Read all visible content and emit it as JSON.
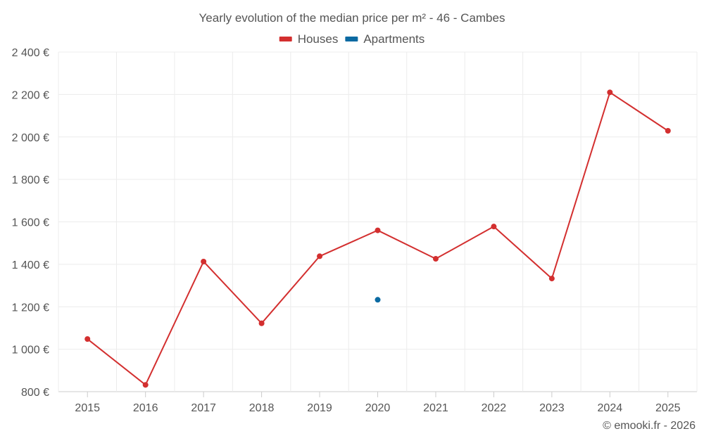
{
  "chart_data": {
    "type": "line",
    "title": "Yearly evolution of the median price per m² - 46 - Cambes",
    "xlabel": "",
    "ylabel": "",
    "categories": [
      "2015",
      "2016",
      "2017",
      "2018",
      "2019",
      "2020",
      "2021",
      "2022",
      "2023",
      "2024",
      "2025"
    ],
    "ylim": [
      800,
      2400
    ],
    "yticks": [
      800,
      1000,
      1200,
      1400,
      1600,
      1800,
      2000,
      2200,
      2400
    ],
    "ytick_labels": [
      "800 €",
      "1 000 €",
      "1 200 €",
      "1 400 €",
      "1 600 €",
      "1 800 €",
      "2 000 €",
      "2 200 €",
      "2 400 €"
    ],
    "grid": true,
    "legend_position": "top-center",
    "series": [
      {
        "name": "Houses",
        "color": "#d32f2f",
        "values": [
          1048,
          832,
          1413,
          1122,
          1438,
          1560,
          1426,
          1578,
          1333,
          2210,
          2029
        ]
      },
      {
        "name": "Apartments",
        "color": "#0b6aa2",
        "values": [
          null,
          null,
          null,
          null,
          null,
          1233,
          null,
          null,
          null,
          null,
          null
        ]
      }
    ],
    "credit": "© emooki.fr - 2026"
  }
}
